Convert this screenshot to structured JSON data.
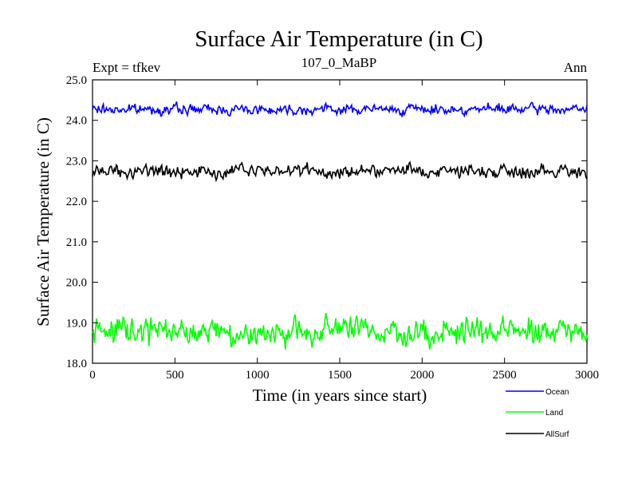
{
  "chart_data": {
    "type": "line",
    "title": "Surface Air Temperature (in C)",
    "subtitle": "107_0_MaBP",
    "left_label": "Expt = tfkev",
    "right_label": "Ann",
    "xlabel": "Time (in years since start)",
    "ylabel": "Surface Air Temperature (in C)",
    "xlim": [
      0,
      3000
    ],
    "ylim": [
      18.0,
      25.0
    ],
    "x_ticks": [
      0,
      500,
      1000,
      1500,
      2000,
      2500,
      3000
    ],
    "y_ticks": [
      "18.0",
      "19.0",
      "20.0",
      "21.0",
      "22.0",
      "23.0",
      "24.0",
      "25.0"
    ],
    "legend_position": "bottom-right",
    "series": [
      {
        "name": "Ocean",
        "color": "#0000ff",
        "mean": 24.27,
        "variability": 0.09,
        "range": [
          24.02,
          24.55
        ]
      },
      {
        "name": "Land",
        "color": "#00ff00",
        "mean": 18.78,
        "variability": 0.24,
        "range": [
          18.2,
          19.35
        ]
      },
      {
        "name": "AllSurf",
        "color": "#000000",
        "mean": 22.75,
        "variability": 0.12,
        "range": [
          22.35,
          23.1
        ]
      }
    ]
  }
}
